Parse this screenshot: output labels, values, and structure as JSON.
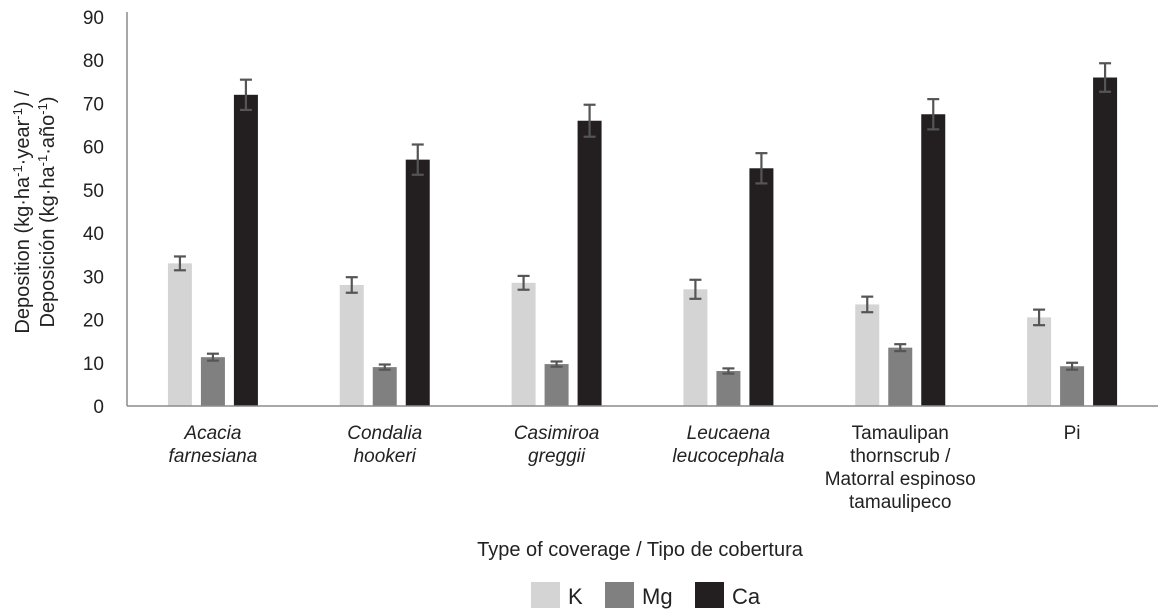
{
  "chart_data": {
    "type": "bar",
    "categories": [
      {
        "lines": [
          "Acacia",
          "farnesiana"
        ],
        "italic": true
      },
      {
        "lines": [
          "Condalia",
          "hookeri"
        ],
        "italic": true
      },
      {
        "lines": [
          "Casimiroa",
          "greggii"
        ],
        "italic": true
      },
      {
        "lines": [
          "Leucaena",
          "leucocephala"
        ],
        "italic": true
      },
      {
        "lines": [
          "Tamaulipan",
          "thornscrub /",
          "Matorral espinoso",
          "tamaulipeco"
        ],
        "italic": false
      },
      {
        "lines": [
          "Pi"
        ],
        "italic": false
      }
    ],
    "series": [
      {
        "name": "K",
        "color": "#d4d4d4",
        "values": [
          33.0,
          28.0,
          28.5,
          27.0,
          23.5,
          20.5
        ],
        "errors": [
          1.6,
          1.8,
          1.6,
          2.2,
          1.8,
          1.8
        ]
      },
      {
        "name": "Mg",
        "color": "#808080",
        "values": [
          11.3,
          9.0,
          9.7,
          8.1,
          13.5,
          9.2
        ],
        "errors": [
          0.8,
          0.6,
          0.6,
          0.6,
          0.8,
          0.8
        ]
      },
      {
        "name": "Ca",
        "color": "#231f20",
        "values": [
          72.0,
          57.0,
          66.0,
          55.0,
          67.5,
          76.0
        ],
        "errors": [
          3.5,
          3.5,
          3.7,
          3.5,
          3.5,
          3.3
        ]
      }
    ],
    "yticks": [
      0,
      10,
      20,
      30,
      40,
      50,
      60,
      70,
      80,
      90
    ],
    "ylim": [
      0,
      90
    ],
    "xlabel": "Type of coverage / Tipo de cobertura",
    "ylabel_line1": [
      "Deposition (kg·ha",
      "-1",
      "·year",
      "-1",
      ") /"
    ],
    "ylabel_line2": [
      "Deposición (kg·ha",
      "-1",
      "·año",
      "-1",
      ")"
    ],
    "grid": false,
    "legend_position": "bottom-center"
  }
}
